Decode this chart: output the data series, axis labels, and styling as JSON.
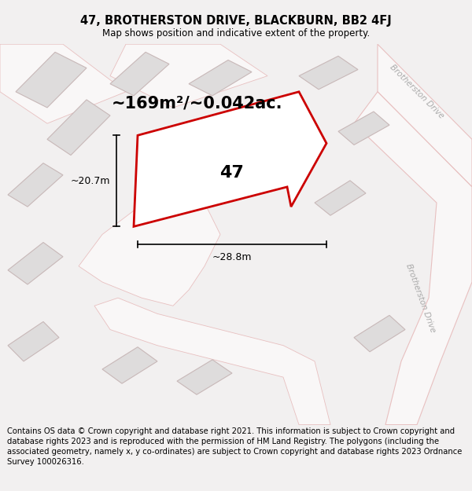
{
  "title": "47, BROTHERSTON DRIVE, BLACKBURN, BB2 4FJ",
  "subtitle": "Map shows position and indicative extent of the property.",
  "area_label": "~169m²/~0.042ac.",
  "number_label": "47",
  "dim_width": "~28.8m",
  "dim_height": "~20.7m",
  "road_label_1": "Brotherston Drive",
  "road_label_2": "Brotherston Drive",
  "footer": "Contains OS data © Crown copyright and database right 2021. This information is subject to Crown copyright and database rights 2023 and is reproduced with the permission of HM Land Registry. The polygons (including the associated geometry, namely x, y co-ordinates) are subject to Crown copyright and database rights 2023 Ordnance Survey 100026316.",
  "bg_color": "#f2f0f0",
  "map_bg_color": "#f7f5f5",
  "plot_fill": "#ffffff",
  "plot_edge": "#cc0000",
  "building_fill": "#dedcdc",
  "building_edge": "#c8b8b8",
  "road_edge": "#e8c0c0",
  "title_fontsize": 10.5,
  "subtitle_fontsize": 8.5,
  "area_fontsize": 15,
  "number_fontsize": 16,
  "dim_fontsize": 9,
  "footer_fontsize": 7.2
}
